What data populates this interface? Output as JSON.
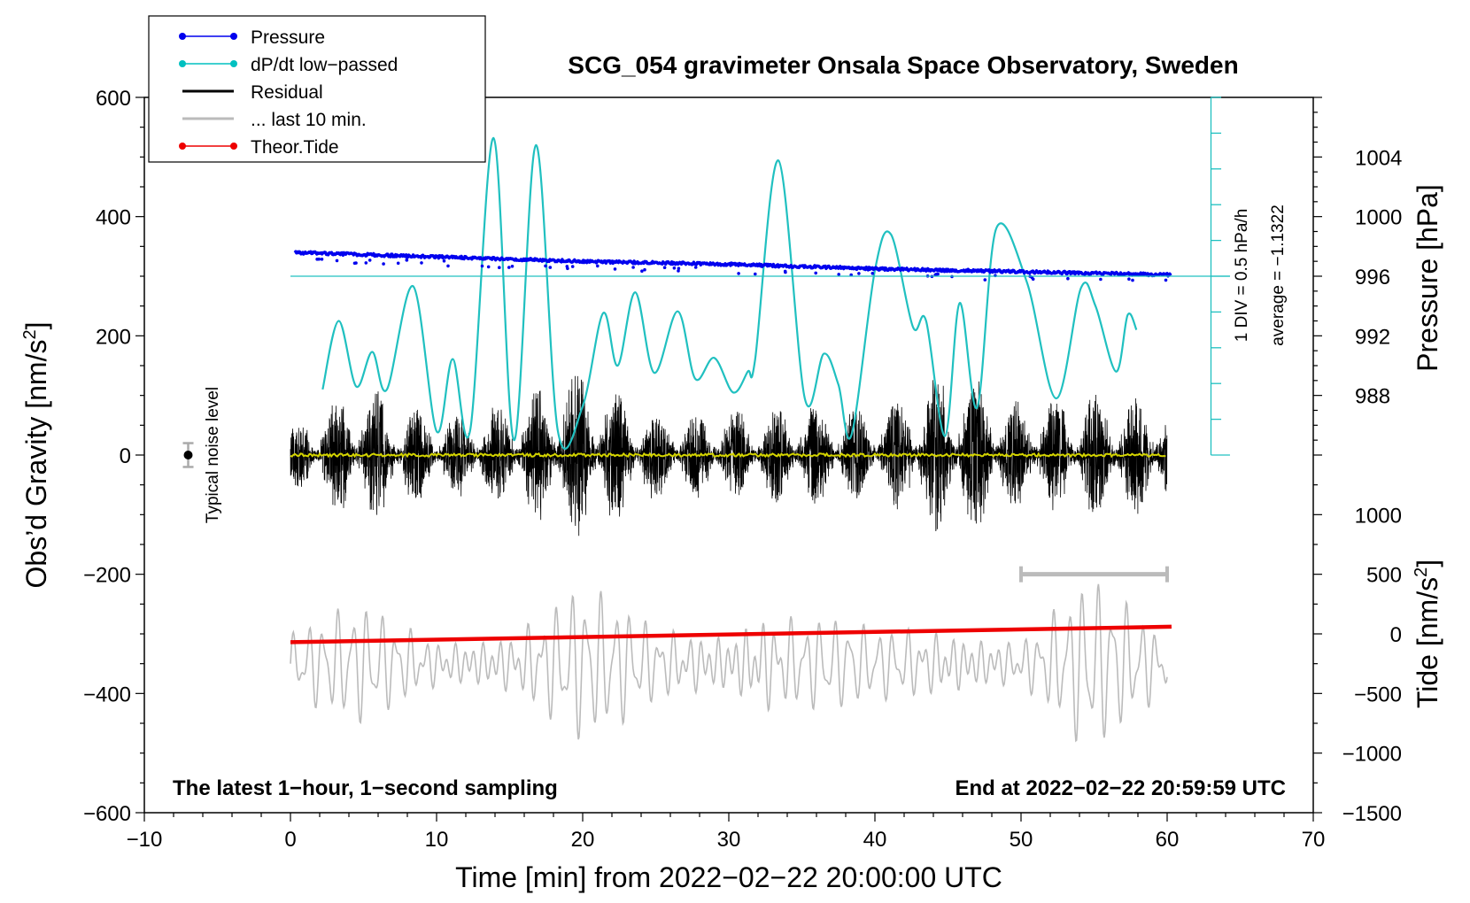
{
  "chart_data": {
    "type": "line",
    "title": "SCG_054 gravimeter Onsala Space Observatory, Sweden",
    "xlabel": "Time [min] from 2022−02−22 20:00:00 UTC",
    "ylabel_left": "Obs’d Gravity [nm/s²]",
    "ylabel_left_main": "Obs’d Gravity [nm/s",
    "ylabel_left_sup": "2",
    "ylabel_left_end": "]",
    "ylabel_pressure": "Pressure [hPa]",
    "ylabel_tide_main": "Tide [nm/s",
    "ylabel_tide_sup": "2",
    "ylabel_tide_end": "]",
    "xlim": [
      -10,
      70
    ],
    "ylim": [
      -600,
      600
    ],
    "x_ticks": [
      -10,
      0,
      10,
      20,
      30,
      40,
      50,
      60,
      70
    ],
    "x_tick_labels": [
      "−10",
      "0",
      "10",
      "20",
      "30",
      "40",
      "50",
      "60",
      "70"
    ],
    "y_ticks": [
      -600,
      -400,
      -200,
      0,
      200,
      400,
      600
    ],
    "y_tick_labels": [
      "−600",
      "−400",
      "−200",
      "0",
      "200",
      "400",
      "600"
    ],
    "pressure_axis": {
      "ticks": [
        988,
        992,
        996,
        1000,
        1004
      ],
      "tick_labels": [
        "988",
        "992",
        "996",
        "1000",
        "1004"
      ],
      "gravity_at_996": 300,
      "gravity_per_hPa": 25
    },
    "tide_axis": {
      "ticks": [
        -1500,
        -1000,
        -500,
        0,
        500,
        1000
      ],
      "tick_labels": [
        "−1500",
        "−1000",
        "−500",
        "0",
        "500",
        "1000"
      ],
      "gravity_at_0": -300,
      "gravity_per_unit": 0.2
    },
    "dpdt_scale": {
      "label_div": "1 DIV = 0.5 hPa/h",
      "label_avg": "average = −1.1322",
      "x": 63,
      "y_from": 0,
      "y_to": 600,
      "div_step": 60,
      "baseline_y": 300
    },
    "legend": {
      "position": "top-left",
      "entries": [
        {
          "label": "Pressure",
          "color": "#0000ee",
          "marker": true
        },
        {
          "label": "dP/dt low−passed",
          "color": "#00c0c0",
          "marker": true
        },
        {
          "label": "Residual",
          "color": "#000000",
          "marker": false
        },
        {
          "label": "... last 10 min.",
          "color": "#bbbbbb",
          "marker": false
        },
        {
          "label": "Theor.Tide",
          "color": "#ee0000",
          "marker": true
        }
      ]
    },
    "annotations": {
      "left": "The latest 1−hour, 1−second sampling",
      "right": "End at 2022−02−22 20:59:59 UTC",
      "noise": "Typical noise level"
    },
    "noise_bar": {
      "x": -7,
      "y": 0,
      "half": 20
    },
    "last10_bar": {
      "x_from": 50,
      "x_to": 60,
      "y": -200
    },
    "series": [
      {
        "name": "Pressure",
        "unit": "hPa",
        "color": "#0000ee",
        "x": [
          0,
          10,
          20,
          30,
          40,
          50,
          60
        ],
        "values": [
          997.6,
          997.3,
          997.0,
          996.8,
          996.5,
          996.3,
          996.1
        ]
      },
      {
        "name": "dP/dt low−passed",
        "unit": "gravity-axis units",
        "color": "#20c0c0",
        "x": [
          2.2,
          3.3,
          4.5,
          5.6,
          6.6,
          8.4,
          10.0,
          11.1,
          12.3,
          13.9,
          15.3,
          16.8,
          18.3,
          20.0,
          21.4,
          22.4,
          23.6,
          24.9,
          26.5,
          27.7,
          29.0,
          30.3,
          31.3,
          31.8,
          33.4,
          35.2,
          36.5,
          37.5,
          38.4,
          40.0,
          41.1,
          42.6,
          43.5,
          44.8,
          45.8,
          47.0,
          48.3,
          50.4,
          52.4,
          54.1,
          55.1,
          56.5,
          57.3,
          57.9
        ],
        "values": [
          110,
          225,
          115,
          173,
          110,
          283,
          40,
          161,
          42,
          532,
          25,
          520,
          40,
          82,
          238,
          150,
          273,
          138,
          241,
          128,
          163,
          105,
          140,
          160,
          494,
          95,
          170,
          118,
          34,
          310,
          370,
          215,
          225,
          32,
          255,
          80,
          380,
          290,
          95,
          280,
          250,
          140,
          235,
          210
        ]
      },
      {
        "name": "Residual",
        "unit": "nm/s²",
        "color": "#000000",
        "x": [
          0,
          5,
          10,
          15,
          19.5,
          25,
          30,
          35,
          40,
          45.3,
          50,
          55,
          60
        ],
        "amplitude": [
          60,
          150,
          80,
          110,
          180,
          90,
          90,
          110,
          90,
          185,
          110,
          130,
          120
        ]
      },
      {
        "name": "Residual mean",
        "unit": "nm/s²",
        "color": "#d4d400",
        "x": [
          0,
          60
        ],
        "values": [
          0,
          0
        ]
      },
      {
        "name": "... last 10 min.",
        "unit": "nm/s² (tide axis)",
        "color": "#bbbbbb",
        "x": [
          0,
          5,
          10,
          15,
          19.5,
          25,
          30,
          32,
          35,
          40,
          45,
          50,
          54.5,
          60
        ],
        "amplitude": [
          380,
          520,
          340,
          460,
          700,
          420,
          520,
          740,
          460,
          320,
          520,
          320,
          760,
          380
        ]
      },
      {
        "name": "Theor.Tide",
        "unit": "nm/s²",
        "color": "#ee0000",
        "x": [
          0,
          60.3
        ],
        "values": [
          -70,
          60
        ]
      }
    ]
  }
}
